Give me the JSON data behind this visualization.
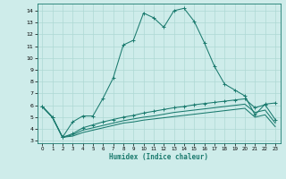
{
  "xlabel": "Humidex (Indice chaleur)",
  "bg_color": "#ceecea",
  "grid_color": "#aed8d4",
  "line_color": "#1a7a6e",
  "xlim": [
    -0.5,
    23.5
  ],
  "ylim": [
    2.8,
    14.6
  ],
  "yticks": [
    3,
    4,
    5,
    6,
    7,
    8,
    9,
    10,
    11,
    12,
    13,
    14
  ],
  "xticks": [
    0,
    1,
    2,
    3,
    4,
    5,
    6,
    7,
    8,
    9,
    10,
    11,
    12,
    13,
    14,
    15,
    16,
    17,
    18,
    19,
    20,
    21,
    22,
    23
  ],
  "curve1_x": [
    0,
    1,
    2,
    3,
    4,
    5,
    6,
    7,
    8,
    9,
    10,
    11,
    12,
    13,
    14,
    15,
    16,
    17,
    18,
    19,
    20,
    21,
    22,
    23
  ],
  "curve1_y": [
    5.9,
    5.0,
    3.3,
    4.6,
    5.1,
    5.1,
    6.6,
    8.3,
    11.1,
    11.5,
    13.8,
    13.4,
    12.6,
    14.0,
    14.2,
    13.1,
    11.3,
    9.3,
    7.8,
    7.3,
    6.8,
    5.2,
    6.1,
    6.2
  ],
  "curve2_x": [
    0,
    1,
    2,
    3,
    4,
    5,
    6,
    7,
    8,
    9,
    10,
    11,
    12,
    13,
    14,
    15,
    16,
    17,
    18,
    19,
    20,
    21,
    22,
    23
  ],
  "curve2_y": [
    5.9,
    5.0,
    3.3,
    3.6,
    4.1,
    4.35,
    4.6,
    4.8,
    5.0,
    5.15,
    5.35,
    5.5,
    5.65,
    5.8,
    5.9,
    6.05,
    6.15,
    6.25,
    6.35,
    6.45,
    6.55,
    5.8,
    6.05,
    4.8
  ],
  "curve3_x": [
    0,
    1,
    2,
    3,
    4,
    5,
    6,
    7,
    8,
    9,
    10,
    11,
    12,
    13,
    14,
    15,
    16,
    17,
    18,
    19,
    20,
    21,
    22,
    23
  ],
  "curve3_y": [
    5.9,
    5.0,
    3.3,
    3.5,
    3.9,
    4.1,
    4.3,
    4.5,
    4.7,
    4.85,
    5.0,
    5.1,
    5.25,
    5.4,
    5.5,
    5.6,
    5.7,
    5.8,
    5.9,
    6.0,
    6.1,
    5.4,
    5.6,
    4.5
  ],
  "curve4_x": [
    0,
    1,
    2,
    3,
    4,
    5,
    6,
    7,
    8,
    9,
    10,
    11,
    12,
    13,
    14,
    15,
    16,
    17,
    18,
    19,
    20,
    21,
    22,
    23
  ],
  "curve4_y": [
    5.9,
    5.0,
    3.3,
    3.4,
    3.7,
    3.9,
    4.1,
    4.3,
    4.5,
    4.6,
    4.75,
    4.85,
    4.95,
    5.05,
    5.15,
    5.25,
    5.35,
    5.45,
    5.55,
    5.65,
    5.75,
    5.0,
    5.2,
    4.2
  ]
}
